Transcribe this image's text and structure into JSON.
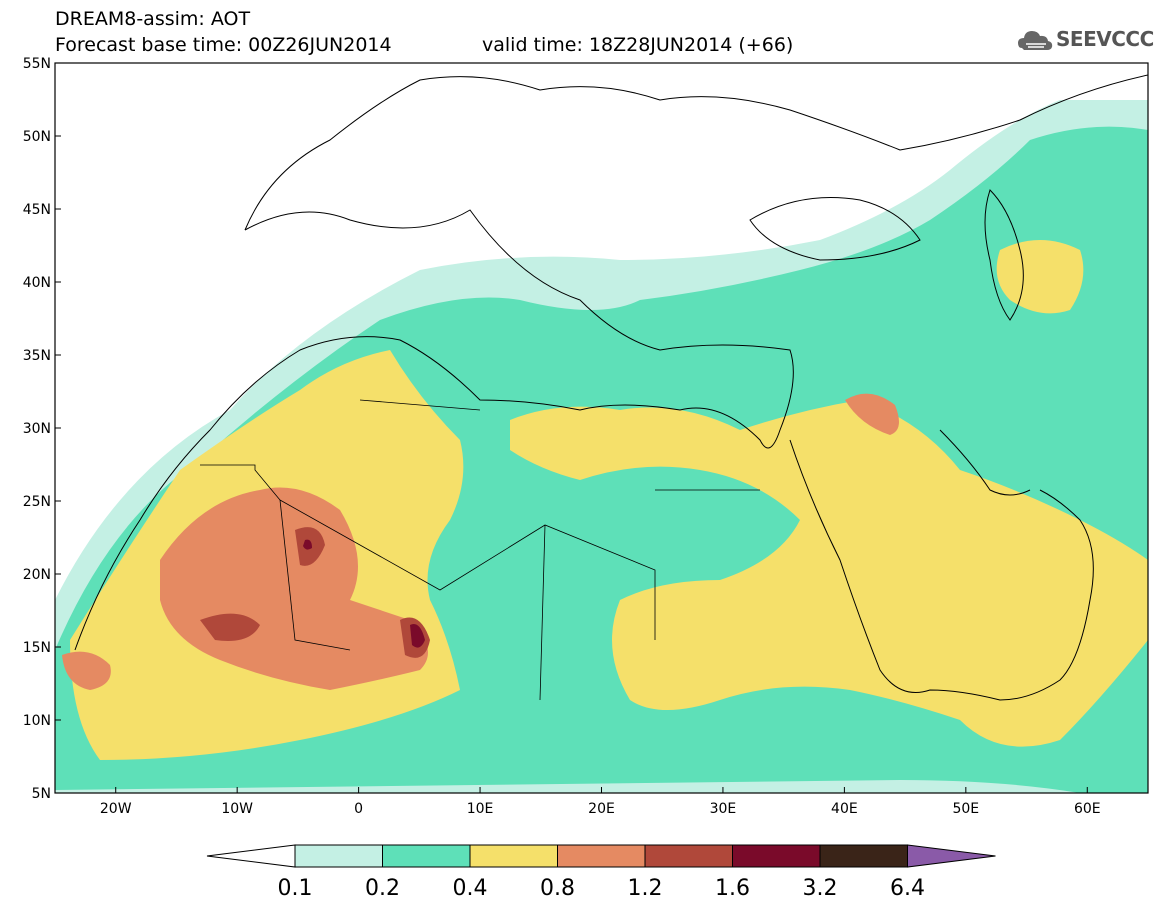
{
  "header": {
    "title": "DREAM8-assim: AOT",
    "base_time": "Forecast base time: 00Z26JUN2014",
    "valid_time": "valid time: 18Z28JUN2014 (+66)"
  },
  "logo": {
    "text": "SEEVCCC",
    "icon": "cloud-icon"
  },
  "map": {
    "lon_range": [
      -25,
      65
    ],
    "lat_range": [
      5,
      55
    ],
    "lat_ticks": [
      "5N",
      "10N",
      "15N",
      "20N",
      "25N",
      "30N",
      "35N",
      "40N",
      "45N",
      "50N",
      "55N"
    ],
    "lon_ticks": [
      "20W",
      "10W",
      "0",
      "10E",
      "20E",
      "30E",
      "40E",
      "50E",
      "60E"
    ]
  },
  "legend": {
    "levels": [
      "0.1",
      "0.2",
      "0.4",
      "0.8",
      "1.2",
      "1.6",
      "3.2",
      "6.4"
    ],
    "colors": [
      "#ffffff",
      "#c4f0e4",
      "#5ee0b8",
      "#f5e06a",
      "#e58a62",
      "#b0483a",
      "#7a0a2a",
      "#3a2418",
      "#8a5aa8"
    ]
  },
  "colors": {
    "c1": "#c4f0e4",
    "c2": "#5ee0b8",
    "c3": "#f5e06a",
    "c4": "#e58a62",
    "c5": "#b0483a",
    "c6": "#7a0a2a"
  }
}
